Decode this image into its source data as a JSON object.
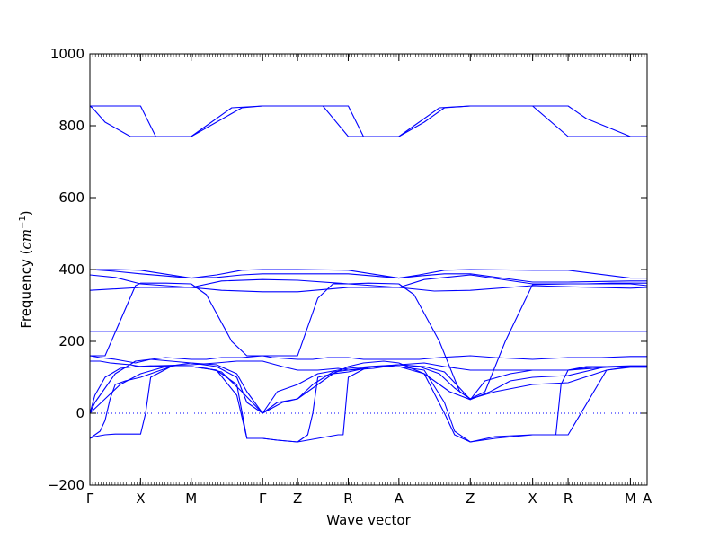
{
  "chart_data": {
    "type": "line",
    "title": "",
    "xlabel": "Wave vector",
    "ylabel": "Frequency",
    "ylabel_unit": "cm",
    "ylabel_unit_exp": "−1",
    "ylim": [
      -200,
      1000
    ],
    "yticks": [
      "−200",
      "0",
      "200",
      "400",
      "600",
      "800",
      "1000"
    ],
    "ytick_values": [
      -200,
      0,
      200,
      400,
      600,
      800,
      1000
    ],
    "kpoints": [
      {
        "label": "Γ",
        "x": 0.0
      },
      {
        "label": "X",
        "x": 1.0
      },
      {
        "label": "M",
        "x": 2.0
      },
      {
        "label": "Γ",
        "x": 3.41
      },
      {
        "label": "Z",
        "x": 4.1
      },
      {
        "label": "R",
        "x": 5.1
      },
      {
        "label": "A",
        "x": 6.1
      },
      {
        "label": "Z",
        "x": 7.51
      },
      {
        "label": "X",
        "x": 8.74
      },
      {
        "label": "R",
        "x": 9.44
      },
      {
        "label": "M",
        "x": 10.67
      },
      {
        "label": "A",
        "x": 11.0
      }
    ],
    "xlim": [
      0,
      11.0
    ],
    "zero_line": 0,
    "line_color": "#0000ff",
    "series": [
      {
        "x": [
          0,
          0.05,
          0.5,
          1.0,
          1.3,
          2.0,
          2.3,
          2.8,
          3.41,
          4.1,
          4.6,
          5.1,
          5.4,
          6.1,
          6.4,
          6.9,
          7.51,
          8.1,
          8.74,
          9.44,
          9.8,
          10.67,
          11.0
        ],
        "y": [
          855,
          855,
          855,
          855,
          770,
          770,
          800,
          850,
          855,
          855,
          855,
          855,
          770,
          770,
          800,
          850,
          855,
          855,
          855,
          855,
          820,
          770,
          770
        ]
      },
      {
        "x": [
          0,
          0.05,
          0.3,
          0.8,
          1.0,
          2.0,
          2.5,
          3.0,
          3.41,
          4.1,
          4.6,
          5.1,
          6.1,
          6.6,
          7.0,
          7.51,
          8.74,
          9.44,
          10.0,
          10.67,
          11.0
        ],
        "y": [
          855,
          850,
          810,
          770,
          770,
          770,
          810,
          850,
          855,
          855,
          855,
          770,
          770,
          810,
          850,
          855,
          855,
          770,
          770,
          770,
          770
        ]
      },
      {
        "x": [
          0,
          0.5,
          1.0,
          2.0,
          2.5,
          3.0,
          3.41,
          4.1,
          5.1,
          6.1,
          6.5,
          7.0,
          7.51,
          8.74,
          9.44,
          10.67,
          11.0
        ],
        "y": [
          400,
          400,
          398,
          376,
          385,
          398,
          400,
          400,
          398,
          376,
          385,
          398,
          400,
          398,
          398,
          376,
          376
        ]
      },
      {
        "x": [
          0,
          0.5,
          1.0,
          2.0,
          2.5,
          3.0,
          3.41,
          4.1,
          5.1,
          6.1,
          6.5,
          7.0,
          7.51,
          8.74,
          9.44,
          10.67,
          11.0
        ],
        "y": [
          400,
          395,
          388,
          376,
          378,
          385,
          388,
          388,
          388,
          376,
          382,
          388,
          388,
          365,
          365,
          368,
          368
        ]
      },
      {
        "x": [
          0,
          0.5,
          1.0,
          2.0,
          2.6,
          3.41,
          4.1,
          5.1,
          6.1,
          6.6,
          7.51,
          8.74,
          9.44,
          10.67,
          11.0
        ],
        "y": [
          385,
          378,
          360,
          350,
          368,
          372,
          370,
          360,
          350,
          372,
          385,
          360,
          360,
          360,
          355
        ]
      },
      {
        "x": [
          0,
          1.0,
          2.0,
          2.6,
          3.41,
          4.1,
          5.1,
          6.1,
          6.8,
          7.51,
          8.74,
          9.44,
          10.67,
          11.0
        ],
        "y": [
          342,
          350,
          350,
          342,
          338,
          338,
          350,
          350,
          340,
          342,
          355,
          352,
          348,
          350
        ]
      },
      {
        "x": [
          0,
          0.3,
          0.9,
          1.0,
          1.5,
          2.0,
          2.3,
          2.8,
          3.1,
          3.41,
          3.7,
          4.1,
          4.5,
          4.8,
          5.1,
          5.5,
          6.1,
          6.4,
          6.9,
          7.3,
          7.51,
          7.8,
          8.2,
          8.74,
          9.44,
          9.8,
          10.3,
          10.67,
          11.0
        ],
        "y": [
          160,
          160,
          355,
          362,
          362,
          360,
          330,
          200,
          160,
          160,
          160,
          160,
          320,
          360,
          360,
          362,
          360,
          330,
          200,
          60,
          40,
          60,
          200,
          358,
          360,
          360,
          362,
          362,
          362
        ]
      },
      {
        "x": [
          0,
          1.0,
          2.0,
          3.41,
          4.1,
          5.1,
          6.1,
          7.51,
          8.74,
          9.44,
          10.67,
          11.0
        ],
        "y": [
          228,
          228,
          228,
          228,
          228,
          228,
          228,
          228,
          228,
          228,
          228,
          228
        ]
      },
      {
        "x": [
          0,
          0.2,
          0.5,
          0.9,
          1.2,
          1.5,
          2.0,
          2.3,
          2.6,
          3.0,
          3.41,
          3.6,
          4.1,
          4.4,
          4.7,
          5.1,
          5.4,
          6.1,
          6.5,
          6.9,
          7.51,
          8.0,
          8.74,
          9.44,
          9.8,
          10.1,
          10.67,
          11.0
        ],
        "y": [
          160,
          155,
          150,
          140,
          150,
          155,
          150,
          150,
          155,
          155,
          160,
          155,
          150,
          150,
          155,
          155,
          150,
          150,
          150,
          155,
          160,
          155,
          150,
          155,
          155,
          155,
          158,
          158
        ]
      },
      {
        "x": [
          0,
          0.1,
          0.3,
          0.6,
          0.9,
          1.2,
          1.6,
          2.0,
          2.3,
          2.6,
          3.0,
          3.41,
          3.8,
          4.1,
          4.4,
          4.8,
          5.1,
          5.4,
          5.8,
          6.1,
          6.6,
          7.1,
          7.51,
          7.9,
          8.3,
          8.74,
          9.44,
          10.2,
          10.67,
          11.0
        ],
        "y": [
          0,
          50,
          100,
          125,
          130,
          132,
          130,
          130,
          125,
          115,
          60,
          0,
          30,
          40,
          70,
          110,
          130,
          140,
          145,
          140,
          110,
          60,
          38,
          60,
          90,
          100,
          105,
          130,
          132,
          132
        ]
      },
      {
        "x": [
          0,
          0.3,
          0.6,
          1.0,
          1.5,
          2.0,
          2.5,
          2.9,
          3.1,
          3.41,
          3.7,
          4.1,
          4.4,
          4.8,
          5.1,
          5.6,
          6.1,
          6.5,
          6.9,
          7.2,
          7.51,
          8.0,
          8.74,
          9.44,
          10.2,
          10.67,
          11.0
        ],
        "y": [
          0,
          40,
          80,
          110,
          130,
          140,
          135,
          110,
          60,
          0,
          30,
          40,
          80,
          115,
          120,
          130,
          135,
          130,
          110,
          70,
          40,
          60,
          80,
          85,
          120,
          128,
          128
        ]
      },
      {
        "x": [
          0,
          0.1,
          0.25,
          0.5,
          0.9,
          1.2,
          1.6,
          2.0,
          2.5,
          2.9,
          3.1,
          3.41,
          3.7,
          4.1,
          4.5,
          4.9,
          5.1,
          5.5,
          6.1,
          6.6,
          7.0,
          7.3,
          7.51,
          7.8,
          8.3,
          8.74,
          9.44,
          10.2,
          10.67,
          11.0
        ],
        "y": [
          0,
          30,
          60,
          110,
          145,
          150,
          145,
          140,
          130,
          100,
          30,
          0,
          60,
          80,
          110,
          120,
          125,
          130,
          135,
          130,
          115,
          70,
          38,
          90,
          110,
          120,
          120,
          128,
          130,
          130
        ]
      },
      {
        "x": [
          0,
          0.2,
          0.4,
          0.8,
          1.0,
          1.3,
          2.0,
          2.5,
          2.9,
          3.41,
          3.8,
          4.1,
          4.5,
          4.9,
          5.1,
          5.6,
          6.1,
          6.6,
          7.0,
          7.51,
          8.0,
          8.74,
          9.44,
          10.0,
          10.67,
          11.0
        ],
        "y": [
          145,
          145,
          140,
          135,
          130,
          132,
          135,
          140,
          145,
          145,
          130,
          120,
          120,
          125,
          120,
          125,
          135,
          140,
          130,
          120,
          120,
          120,
          120,
          130,
          130,
          130
        ]
      },
      {
        "x": [
          0,
          0.1,
          0.3,
          0.5,
          1.0,
          1.1,
          1.2,
          1.6,
          2.0,
          2.5,
          2.9,
          3.1,
          3.41,
          3.7,
          4.1,
          4.5,
          4.9,
          5.0,
          5.1,
          5.5,
          6.1,
          6.6,
          7.0,
          7.2,
          7.51,
          8.0,
          8.74,
          9.2,
          9.3,
          9.44,
          9.8,
          10.67,
          11.0
        ],
        "y": [
          -70,
          -65,
          -60,
          -58,
          -58,
          0,
          100,
          130,
          130,
          120,
          80,
          -70,
          -70,
          -75,
          -80,
          -70,
          -60,
          -60,
          100,
          130,
          130,
          110,
          0,
          -60,
          -80,
          -65,
          -60,
          -60,
          80,
          120,
          130,
          130,
          130
        ]
      },
      {
        "x": [
          0,
          0.2,
          0.3,
          0.4,
          0.5,
          0.7,
          1.0,
          1.6,
          2.0,
          2.5,
          2.9,
          3.1,
          3.41,
          3.7,
          4.1,
          4.3,
          4.4,
          4.5,
          4.8,
          5.1,
          5.6,
          6.1,
          6.6,
          7.0,
          7.2,
          7.51,
          8.0,
          8.74,
          9.44,
          10.2,
          10.67,
          11.0
        ],
        "y": [
          -70,
          -50,
          -20,
          40,
          80,
          90,
          100,
          130,
          130,
          120,
          50,
          -70,
          -70,
          -75,
          -80,
          -60,
          0,
          100,
          110,
          115,
          130,
          130,
          120,
          30,
          -50,
          -80,
          -70,
          -60,
          -60,
          120,
          130,
          130
        ]
      }
    ]
  }
}
